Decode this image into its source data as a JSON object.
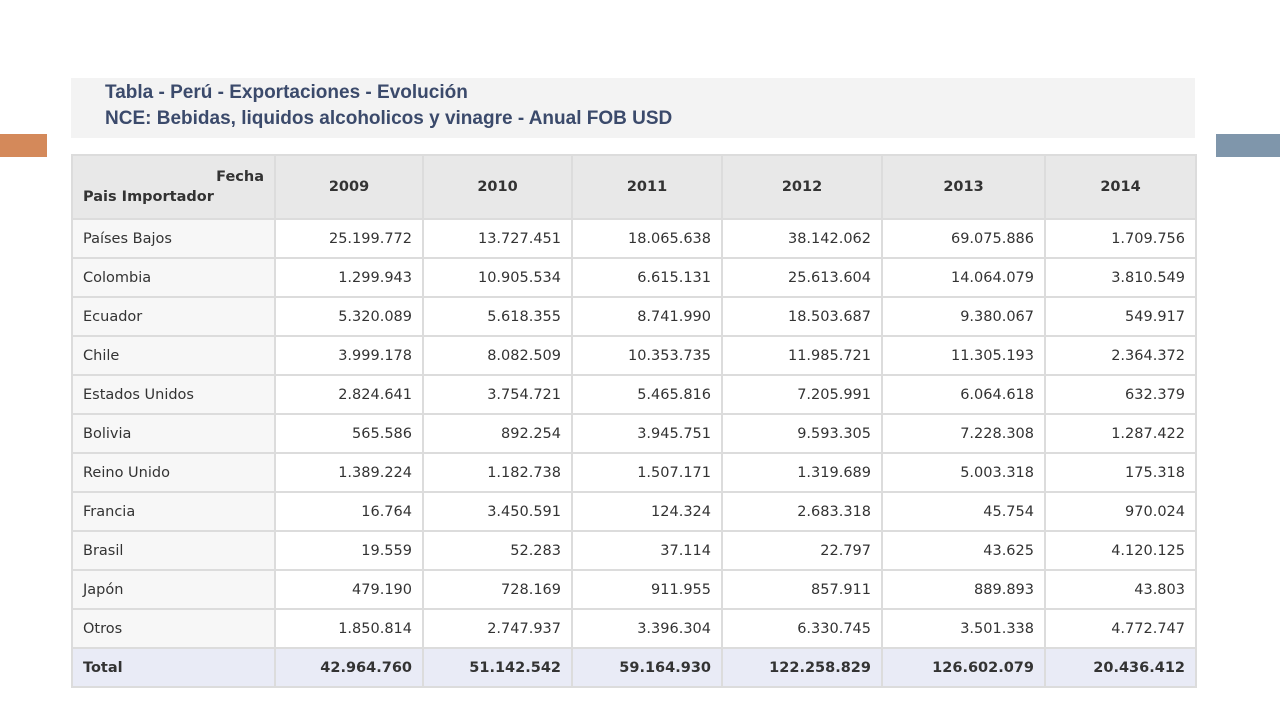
{
  "header": {
    "title": "Tabla - Perú - Exportaciones - Evolución",
    "subtitle": "NCE: Bebidas, liquidos alcoholicos y vinagre - Anual FOB USD"
  },
  "table": {
    "corner_top": "Fecha",
    "corner_bottom": "Pais Importador",
    "columns": [
      "2009",
      "2010",
      "2011",
      "2012",
      "2013",
      "2014"
    ],
    "rows": [
      [
        "Países Bajos",
        "25.199.772",
        "13.727.451",
        "18.065.638",
        "38.142.062",
        "69.075.886",
        "1.709.756"
      ],
      [
        "Colombia",
        "1.299.943",
        "10.905.534",
        "6.615.131",
        "25.613.604",
        "14.064.079",
        "3.810.549"
      ],
      [
        "Ecuador",
        "5.320.089",
        "5.618.355",
        "8.741.990",
        "18.503.687",
        "9.380.067",
        "549.917"
      ],
      [
        "Chile",
        "3.999.178",
        "8.082.509",
        "10.353.735",
        "11.985.721",
        "11.305.193",
        "2.364.372"
      ],
      [
        "Estados Unidos",
        "2.824.641",
        "3.754.721",
        "5.465.816",
        "7.205.991",
        "6.064.618",
        "632.379"
      ],
      [
        "Bolivia",
        "565.586",
        "892.254",
        "3.945.751",
        "9.593.305",
        "7.228.308",
        "1.287.422"
      ],
      [
        "Reino Unido",
        "1.389.224",
        "1.182.738",
        "1.507.171",
        "1.319.689",
        "5.003.318",
        "175.318"
      ],
      [
        "Francia",
        "16.764",
        "3.450.591",
        "124.324",
        "2.683.318",
        "45.754",
        "970.024"
      ],
      [
        "Brasil",
        "19.559",
        "52.283",
        "37.114",
        "22.797",
        "43.625",
        "4.120.125"
      ],
      [
        "Japón",
        "479.190",
        "728.169",
        "911.955",
        "857.911",
        "889.893",
        "43.803"
      ],
      [
        "Otros",
        "1.850.814",
        "2.747.937",
        "3.396.304",
        "6.330.745",
        "3.501.338",
        "4.772.747"
      ]
    ],
    "total": [
      "Total",
      "42.964.760",
      "51.142.542",
      "59.164.930",
      "122.258.829",
      "126.602.079",
      "20.436.412"
    ]
  }
}
